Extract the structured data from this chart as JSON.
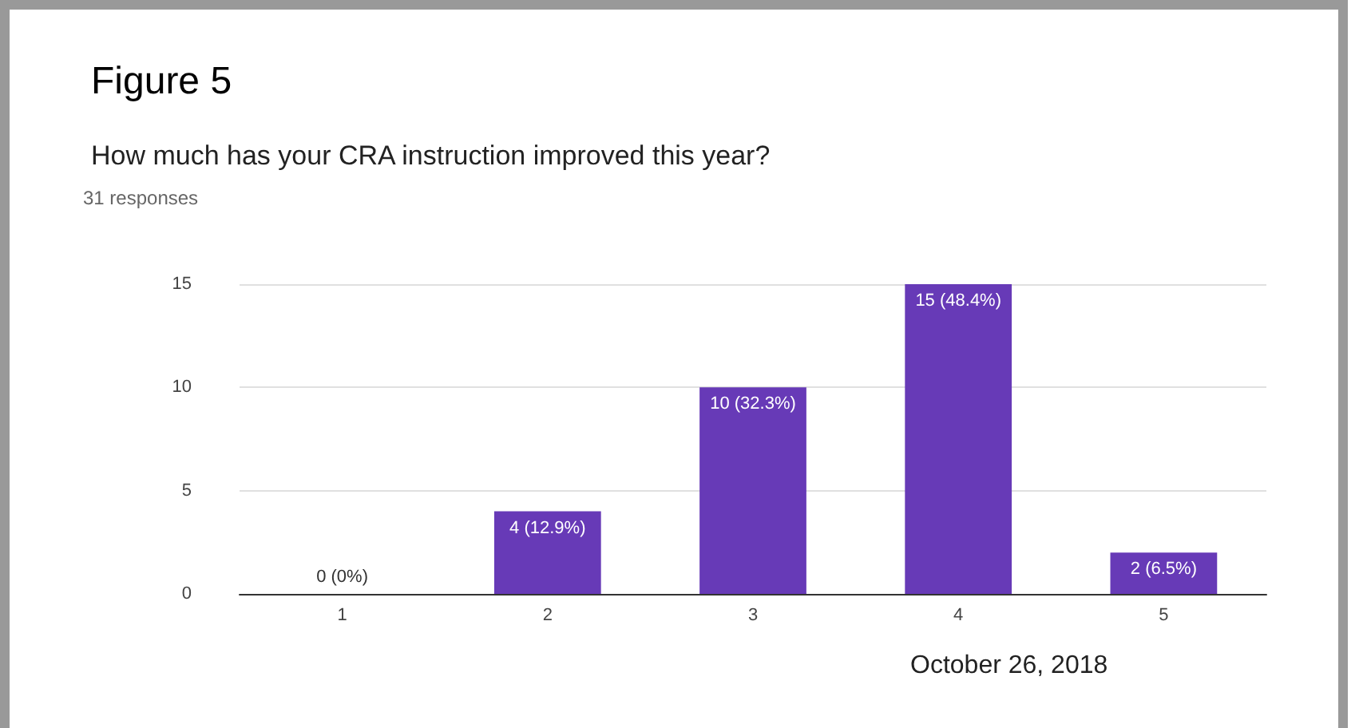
{
  "chart_data": {
    "type": "bar",
    "title": "Figure 5",
    "subtitle": "How much has your CRA instruction improved this year?",
    "categories": [
      "1",
      "2",
      "3",
      "4",
      "5"
    ],
    "values": [
      0,
      4,
      10,
      15,
      2
    ],
    "color": "#673ab7",
    "value_labels": [
      "0 (0%)",
      "4 (12.9%)",
      "10 (32.3%)",
      "15 (48.4%)",
      "2 (6.5%)"
    ],
    "ylim": [
      0,
      15
    ],
    "yticks": [
      0,
      5,
      10,
      15
    ],
    "grid": "y",
    "annotations": [
      "31 responses",
      "October 26, 2018"
    ]
  }
}
